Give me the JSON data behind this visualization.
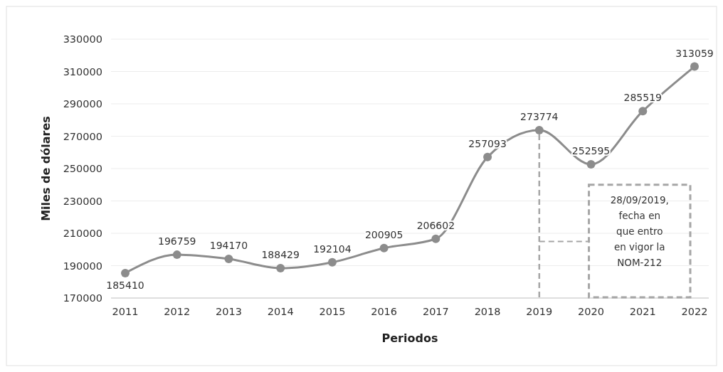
{
  "chart_data": {
    "type": "line",
    "xlabel": "Periodos",
    "ylabel": "Miles de dólares",
    "categories": [
      "2011",
      "2012",
      "2013",
      "2014",
      "2015",
      "2016",
      "2017",
      "2018",
      "2019",
      "2020",
      "2021",
      "2022"
    ],
    "series": [
      {
        "color": "#8c8c8c",
        "values": [
          185410,
          196759,
          194170,
          188429,
          192104,
          200905,
          206602,
          257093,
          273774,
          252595,
          285519,
          313059
        ]
      }
    ],
    "ylim": [
      170000,
      330000
    ],
    "yticks": [
      170000,
      190000,
      210000,
      230000,
      250000,
      270000,
      290000,
      310000,
      330000
    ],
    "grid": "y",
    "marker": "circle",
    "line_style": "solid",
    "data_labels": true,
    "annotations": [
      "28/09/2019, fecha en que entro en vigor la NOM-212"
    ],
    "ref_lines": [
      {
        "axis": "x",
        "value": "2019",
        "color": "#a6a6a6",
        "line_style": "dashed"
      }
    ]
  }
}
